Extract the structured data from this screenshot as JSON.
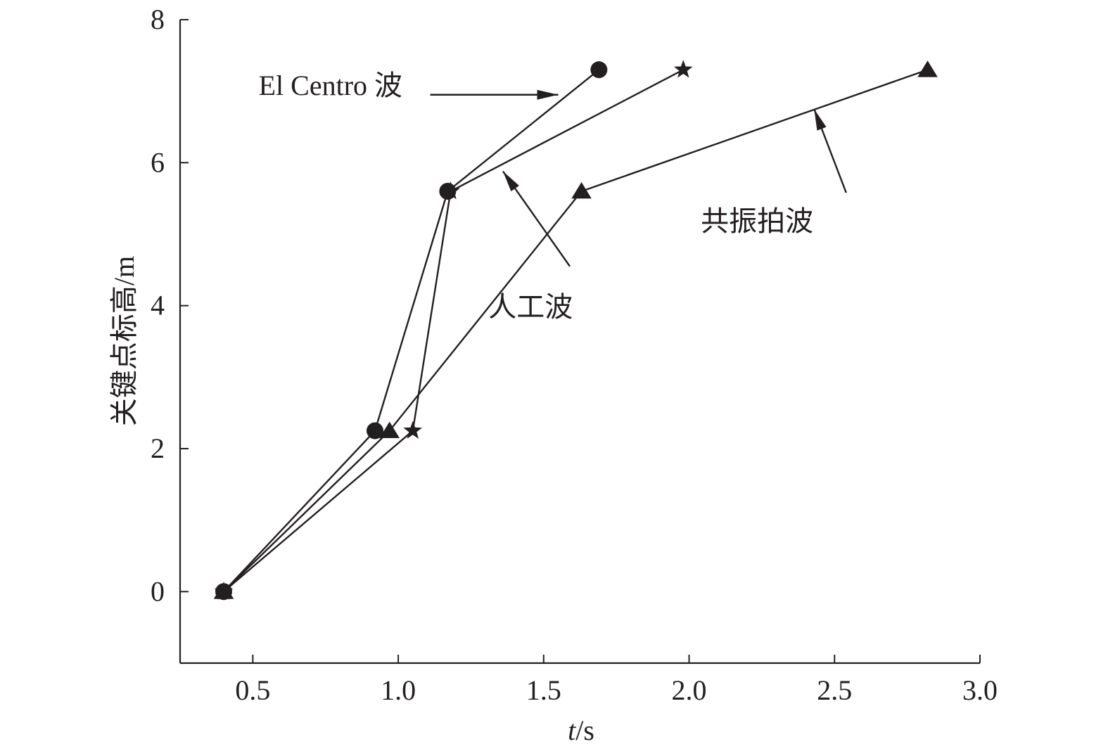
{
  "chart_data": {
    "type": "line",
    "xlabel_italic": "t",
    "xlabel_unit": "/s",
    "ylabel": "关键点标高/m",
    "xlim": [
      0.25,
      3.0
    ],
    "ylim": [
      -1,
      8
    ],
    "x_ticks": [
      0.5,
      1.0,
      1.5,
      2.0,
      2.5,
      3.0
    ],
    "x_tick_labels": [
      "0.5",
      "1.0",
      "1.5",
      "2.0",
      "2.5",
      "3.0"
    ],
    "y_ticks": [
      0,
      2,
      4,
      6,
      8
    ],
    "y_tick_labels": [
      "0",
      "2",
      "4",
      "6",
      "8"
    ],
    "grid": false,
    "color": "#231f20",
    "series": [
      {
        "marker": "circle",
        "x": [
          0.4,
          0.92,
          1.17,
          1.69
        ],
        "y": [
          0,
          2.25,
          5.6,
          7.3
        ]
      },
      {
        "marker": "star",
        "x": [
          0.4,
          1.05,
          1.18,
          1.98
        ],
        "y": [
          0,
          2.25,
          5.6,
          7.3
        ]
      },
      {
        "marker": "triangle",
        "x": [
          0.4,
          0.97,
          1.63,
          2.82
        ],
        "y": [
          0,
          2.25,
          5.6,
          7.3
        ]
      }
    ],
    "annotations": [
      {
        "text": "El Centro 波",
        "text_x": 0.52,
        "text_y": 6.95,
        "anchor": "start",
        "arrow_from": [
          1.11,
          6.95
        ],
        "arrow_to": [
          1.55,
          6.95
        ]
      },
      {
        "text": "人工波",
        "text_x": 1.31,
        "text_y": 3.85,
        "anchor": "start",
        "arrow_from": [
          1.59,
          4.55
        ],
        "arrow_to": [
          1.36,
          5.88
        ]
      },
      {
        "text": "共振拍波",
        "text_x": 2.04,
        "text_y": 5.05,
        "anchor": "start",
        "arrow_from": [
          2.54,
          5.58
        ],
        "arrow_to": [
          2.43,
          6.75
        ]
      }
    ]
  }
}
